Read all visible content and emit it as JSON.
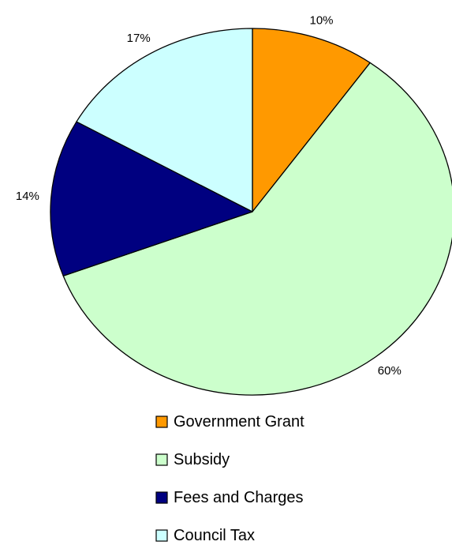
{
  "chart_data": {
    "type": "pie",
    "categories": [
      "Government Grant",
      "Subsidy",
      "Fees and Charges",
      "Council Tax"
    ],
    "values": [
      10,
      60,
      14,
      17
    ],
    "labels": [
      "10%",
      "60%",
      "14%",
      "17%"
    ],
    "colors": [
      "#FF9900",
      "#CCFFCC",
      "#000080",
      "#CCFFFF"
    ],
    "start_angle": "12 o'clock",
    "direction": "clockwise",
    "legend_position": "bottom"
  }
}
